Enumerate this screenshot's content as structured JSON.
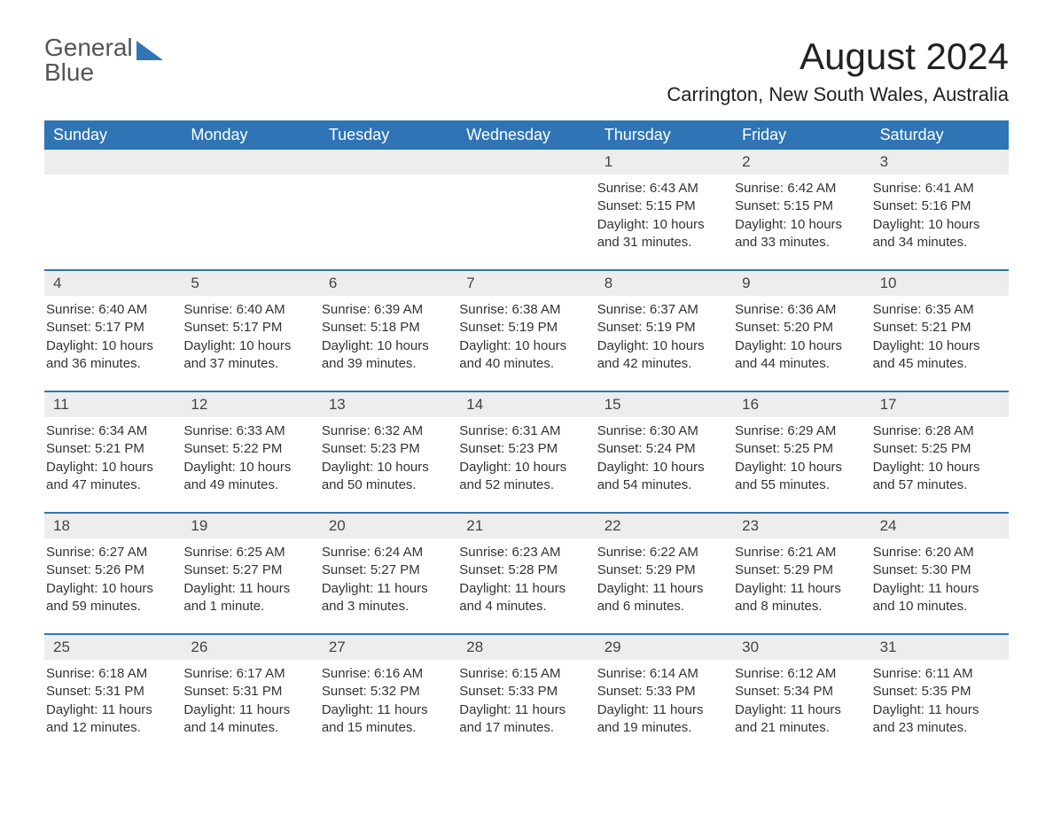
{
  "logo": {
    "text1": "General",
    "text2": "Blue"
  },
  "title": "August 2024",
  "location": "Carrington, New South Wales, Australia",
  "colors": {
    "header_bg": "#2f75b5",
    "header_text": "#ffffff",
    "daynum_bg": "#ededed",
    "body_text": "#333333",
    "background": "#ffffff",
    "rule": "#2f75b5"
  },
  "typography": {
    "title_fontsize": 42,
    "location_fontsize": 22,
    "dayhead_fontsize": 18,
    "daynum_fontsize": 17,
    "body_fontsize": 15
  },
  "day_headers": [
    "Sunday",
    "Monday",
    "Tuesday",
    "Wednesday",
    "Thursday",
    "Friday",
    "Saturday"
  ],
  "weeks": [
    [
      null,
      null,
      null,
      null,
      {
        "n": "1",
        "sr": "Sunrise: 6:43 AM",
        "ss": "Sunset: 5:15 PM",
        "dl1": "Daylight: 10 hours",
        "dl2": "and 31 minutes."
      },
      {
        "n": "2",
        "sr": "Sunrise: 6:42 AM",
        "ss": "Sunset: 5:15 PM",
        "dl1": "Daylight: 10 hours",
        "dl2": "and 33 minutes."
      },
      {
        "n": "3",
        "sr": "Sunrise: 6:41 AM",
        "ss": "Sunset: 5:16 PM",
        "dl1": "Daylight: 10 hours",
        "dl2": "and 34 minutes."
      }
    ],
    [
      {
        "n": "4",
        "sr": "Sunrise: 6:40 AM",
        "ss": "Sunset: 5:17 PM",
        "dl1": "Daylight: 10 hours",
        "dl2": "and 36 minutes."
      },
      {
        "n": "5",
        "sr": "Sunrise: 6:40 AM",
        "ss": "Sunset: 5:17 PM",
        "dl1": "Daylight: 10 hours",
        "dl2": "and 37 minutes."
      },
      {
        "n": "6",
        "sr": "Sunrise: 6:39 AM",
        "ss": "Sunset: 5:18 PM",
        "dl1": "Daylight: 10 hours",
        "dl2": "and 39 minutes."
      },
      {
        "n": "7",
        "sr": "Sunrise: 6:38 AM",
        "ss": "Sunset: 5:19 PM",
        "dl1": "Daylight: 10 hours",
        "dl2": "and 40 minutes."
      },
      {
        "n": "8",
        "sr": "Sunrise: 6:37 AM",
        "ss": "Sunset: 5:19 PM",
        "dl1": "Daylight: 10 hours",
        "dl2": "and 42 minutes."
      },
      {
        "n": "9",
        "sr": "Sunrise: 6:36 AM",
        "ss": "Sunset: 5:20 PM",
        "dl1": "Daylight: 10 hours",
        "dl2": "and 44 minutes."
      },
      {
        "n": "10",
        "sr": "Sunrise: 6:35 AM",
        "ss": "Sunset: 5:21 PM",
        "dl1": "Daylight: 10 hours",
        "dl2": "and 45 minutes."
      }
    ],
    [
      {
        "n": "11",
        "sr": "Sunrise: 6:34 AM",
        "ss": "Sunset: 5:21 PM",
        "dl1": "Daylight: 10 hours",
        "dl2": "and 47 minutes."
      },
      {
        "n": "12",
        "sr": "Sunrise: 6:33 AM",
        "ss": "Sunset: 5:22 PM",
        "dl1": "Daylight: 10 hours",
        "dl2": "and 49 minutes."
      },
      {
        "n": "13",
        "sr": "Sunrise: 6:32 AM",
        "ss": "Sunset: 5:23 PM",
        "dl1": "Daylight: 10 hours",
        "dl2": "and 50 minutes."
      },
      {
        "n": "14",
        "sr": "Sunrise: 6:31 AM",
        "ss": "Sunset: 5:23 PM",
        "dl1": "Daylight: 10 hours",
        "dl2": "and 52 minutes."
      },
      {
        "n": "15",
        "sr": "Sunrise: 6:30 AM",
        "ss": "Sunset: 5:24 PM",
        "dl1": "Daylight: 10 hours",
        "dl2": "and 54 minutes."
      },
      {
        "n": "16",
        "sr": "Sunrise: 6:29 AM",
        "ss": "Sunset: 5:25 PM",
        "dl1": "Daylight: 10 hours",
        "dl2": "and 55 minutes."
      },
      {
        "n": "17",
        "sr": "Sunrise: 6:28 AM",
        "ss": "Sunset: 5:25 PM",
        "dl1": "Daylight: 10 hours",
        "dl2": "and 57 minutes."
      }
    ],
    [
      {
        "n": "18",
        "sr": "Sunrise: 6:27 AM",
        "ss": "Sunset: 5:26 PM",
        "dl1": "Daylight: 10 hours",
        "dl2": "and 59 minutes."
      },
      {
        "n": "19",
        "sr": "Sunrise: 6:25 AM",
        "ss": "Sunset: 5:27 PM",
        "dl1": "Daylight: 11 hours",
        "dl2": "and 1 minute."
      },
      {
        "n": "20",
        "sr": "Sunrise: 6:24 AM",
        "ss": "Sunset: 5:27 PM",
        "dl1": "Daylight: 11 hours",
        "dl2": "and 3 minutes."
      },
      {
        "n": "21",
        "sr": "Sunrise: 6:23 AM",
        "ss": "Sunset: 5:28 PM",
        "dl1": "Daylight: 11 hours",
        "dl2": "and 4 minutes."
      },
      {
        "n": "22",
        "sr": "Sunrise: 6:22 AM",
        "ss": "Sunset: 5:29 PM",
        "dl1": "Daylight: 11 hours",
        "dl2": "and 6 minutes."
      },
      {
        "n": "23",
        "sr": "Sunrise: 6:21 AM",
        "ss": "Sunset: 5:29 PM",
        "dl1": "Daylight: 11 hours",
        "dl2": "and 8 minutes."
      },
      {
        "n": "24",
        "sr": "Sunrise: 6:20 AM",
        "ss": "Sunset: 5:30 PM",
        "dl1": "Daylight: 11 hours",
        "dl2": "and 10 minutes."
      }
    ],
    [
      {
        "n": "25",
        "sr": "Sunrise: 6:18 AM",
        "ss": "Sunset: 5:31 PM",
        "dl1": "Daylight: 11 hours",
        "dl2": "and 12 minutes."
      },
      {
        "n": "26",
        "sr": "Sunrise: 6:17 AM",
        "ss": "Sunset: 5:31 PM",
        "dl1": "Daylight: 11 hours",
        "dl2": "and 14 minutes."
      },
      {
        "n": "27",
        "sr": "Sunrise: 6:16 AM",
        "ss": "Sunset: 5:32 PM",
        "dl1": "Daylight: 11 hours",
        "dl2": "and 15 minutes."
      },
      {
        "n": "28",
        "sr": "Sunrise: 6:15 AM",
        "ss": "Sunset: 5:33 PM",
        "dl1": "Daylight: 11 hours",
        "dl2": "and 17 minutes."
      },
      {
        "n": "29",
        "sr": "Sunrise: 6:14 AM",
        "ss": "Sunset: 5:33 PM",
        "dl1": "Daylight: 11 hours",
        "dl2": "and 19 minutes."
      },
      {
        "n": "30",
        "sr": "Sunrise: 6:12 AM",
        "ss": "Sunset: 5:34 PM",
        "dl1": "Daylight: 11 hours",
        "dl2": "and 21 minutes."
      },
      {
        "n": "31",
        "sr": "Sunrise: 6:11 AM",
        "ss": "Sunset: 5:35 PM",
        "dl1": "Daylight: 11 hours",
        "dl2": "and 23 minutes."
      }
    ]
  ]
}
